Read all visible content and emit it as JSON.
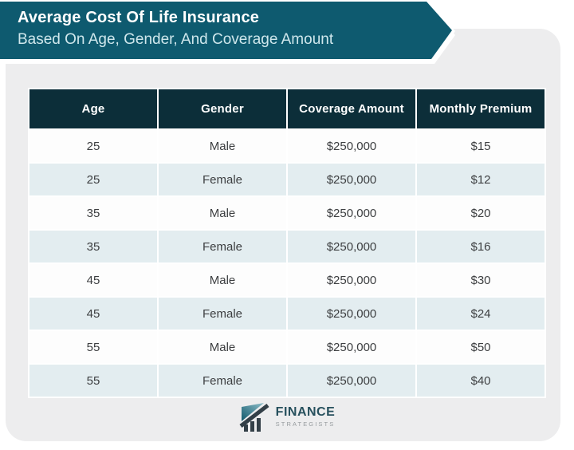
{
  "banner": {
    "title": "Average Cost Of Life Insurance",
    "subtitle": "Based On Age, Gender, And Coverage Amount"
  },
  "chart_data": {
    "type": "table",
    "title": "Average Cost Of Life Insurance Based On Age, Gender, And Coverage Amount",
    "columns": [
      "Age",
      "Gender",
      "Coverage Amount",
      "Monthly Premium"
    ],
    "rows": [
      [
        "25",
        "Male",
        "$250,000",
        "$15"
      ],
      [
        "25",
        "Female",
        "$250,000",
        "$12"
      ],
      [
        "35",
        "Male",
        "$250,000",
        "$20"
      ],
      [
        "35",
        "Female",
        "$250,000",
        "$16"
      ],
      [
        "45",
        "Male",
        "$250,000",
        "$30"
      ],
      [
        "45",
        "Female",
        "$250,000",
        "$24"
      ],
      [
        "55",
        "Male",
        "$250,000",
        "$50"
      ],
      [
        "55",
        "Female",
        "$250,000",
        "$40"
      ]
    ],
    "layout": {
      "striped": true,
      "stripe_pattern": "white, light-blue alternating",
      "header_position": "top"
    }
  },
  "footer": {
    "brand_name": "FINANCE",
    "brand_subtitle": "STRATEGISTS",
    "logo_icon": "bar-chart-trend-icon"
  },
  "colors": {
    "banner_teal": "#0e5a6f",
    "header_dark": "#0c2e39",
    "row_white": "#fdfdfd",
    "row_light": "#e3edf0",
    "card_bg": "#ededee",
    "body_text": "#3d3f41",
    "subtitle_text": "#cfe7ec",
    "brand_text": "#27505d"
  }
}
